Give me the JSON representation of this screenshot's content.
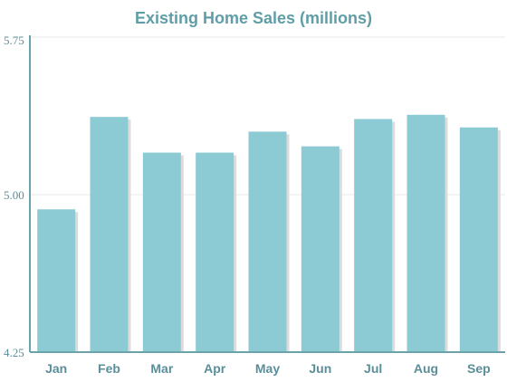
{
  "colors": {
    "bar": "#8ccbd4",
    "bar_shadow": "#dcdcdc",
    "title": "#5f9ea6",
    "label": "#5a8f9a",
    "axis": "#6aa3ab",
    "grid": "#e8e8e8"
  },
  "chart_data": {
    "type": "bar",
    "title": "Existing Home Sales (millions)",
    "xlabel": "",
    "ylabel": "",
    "categories": [
      "Jan",
      "Feb",
      "Mar",
      "Apr",
      "May",
      "Jun",
      "Jul",
      "Aug",
      "Sep"
    ],
    "values": [
      4.93,
      5.37,
      5.2,
      5.2,
      5.3,
      5.23,
      5.36,
      5.38,
      5.32
    ],
    "ylim": [
      4.25,
      5.75
    ],
    "yticks": [
      4.25,
      5.0,
      5.75
    ],
    "ytick_labels": [
      "4.25",
      "5.00",
      "5.75"
    ],
    "grid": true,
    "legend": "none"
  }
}
